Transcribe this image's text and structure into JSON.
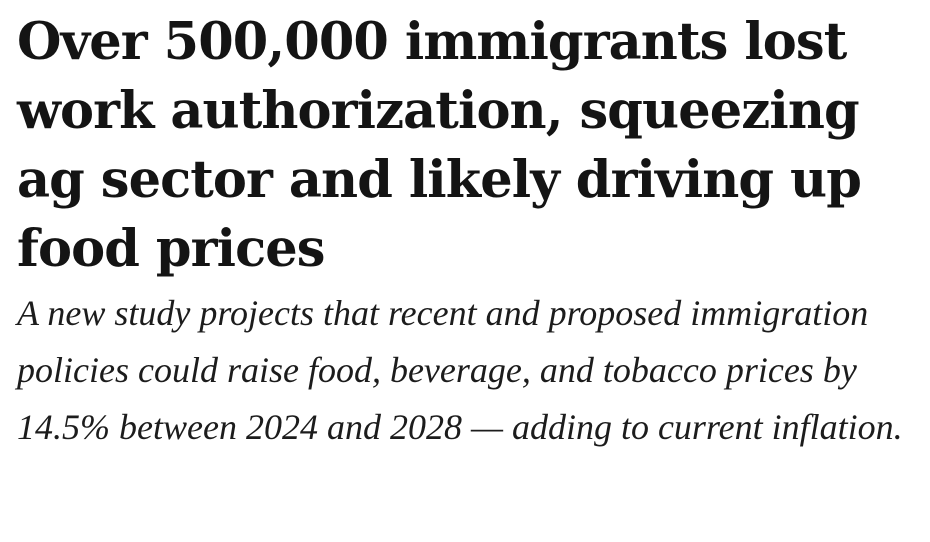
{
  "article": {
    "headline": "Over 500,000 immigrants lost work authorization, squeezing ag sector and likely driving up food prices",
    "subheadline": "A new study projects that recent and proposed immigration policies could raise food, beverage, and tobacco prices by 14.5% between 2024 and 2028 — adding to current inflation."
  }
}
